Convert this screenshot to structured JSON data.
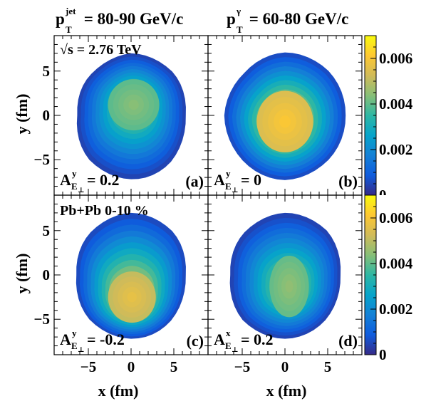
{
  "chart_data": {
    "type": "heatmap",
    "energy_label": "√s = 2.76 TeV",
    "collision_label": "Pb+Pb 0-10 %",
    "column_headers": [
      {
        "base": "p",
        "sup": "jet",
        "sub": "T",
        "range": " = 80-90 GeV/c"
      },
      {
        "base": "p",
        "sup": "γ",
        "sub": "T",
        "range": " = 60-80 GeV/c"
      }
    ],
    "xlabel": "x (fm)",
    "ylabel": "y (fm)",
    "xlim": [
      -9,
      9
    ],
    "ylim": [
      -9,
      9
    ],
    "xticks": [
      -5,
      0,
      5
    ],
    "yticks": [
      -5,
      0,
      5
    ],
    "xtick_labels": [
      "−5",
      "0",
      "5"
    ],
    "ytick_labels": [
      "−5",
      "0",
      "5"
    ],
    "colorbar": {
      "range": [
        0,
        0.007
      ],
      "ticks": [
        0,
        0.002,
        0.004,
        0.006
      ],
      "labels": [
        "0",
        "0.002",
        "0.004",
        "0.006"
      ],
      "colors": [
        "#352a87",
        "#0f5cdd",
        "#1481d6",
        "#06a4ca",
        "#2eb7a4",
        "#87bf77",
        "#d1bb59",
        "#fec832",
        "#f9fb0e"
      ]
    },
    "panels": [
      {
        "tag": "(a)",
        "asym": {
          "sup": "y",
          "value": "= 0.2"
        },
        "row": 0,
        "col": 0,
        "contour_rx": [
          6.4,
          6.8,
          6.2,
          6.6,
          6.3,
          6.9,
          6.5,
          6.6
        ],
        "contour_ry": [
          7.3,
          7.0,
          7.0,
          6.6,
          7.0,
          7.1,
          7.2,
          7.4
        ],
        "peak_level": 0.0045,
        "peak_x": 0.3,
        "peak_y": 1.2,
        "peak_sx": 3.0,
        "peak_sy": 3.0
      },
      {
        "tag": "(b)",
        "asym": {
          "sup": "y",
          "value": "= 0"
        },
        "row": 0,
        "col": 1,
        "contour_rx": [
          7.1,
          7.2,
          6.8,
          6.7,
          7.1,
          7.0,
          6.9,
          7.2
        ],
        "contour_ry": [
          7.0,
          7.1,
          7.1,
          6.8,
          7.0,
          7.2,
          7.3,
          7.1
        ],
        "peak_level": 0.0062,
        "peak_x": 0.0,
        "peak_y": -0.7,
        "peak_sx": 3.3,
        "peak_sy": 3.6
      },
      {
        "tag": "(c)",
        "asym": {
          "sup": "y",
          "value": "= -0.2"
        },
        "row": 1,
        "col": 0,
        "contour_rx": [
          6.4,
          6.8,
          6.3,
          6.7,
          6.4,
          6.9,
          6.6,
          6.6
        ],
        "contour_ry": [
          7.2,
          7.0,
          7.0,
          6.8,
          7.0,
          7.1,
          7.2,
          7.3
        ],
        "peak_level": 0.0058,
        "peak_x": 0.1,
        "peak_y": -2.5,
        "peak_sx": 2.8,
        "peak_sy": 3.0
      },
      {
        "tag": "(d)",
        "asym": {
          "sup": "x",
          "value": "= 0.2"
        },
        "row": 1,
        "col": 1,
        "contour_rx": [
          6.5,
          6.9,
          6.3,
          6.7,
          6.4,
          7.0,
          6.6,
          6.7
        ],
        "contour_ry": [
          7.1,
          7.1,
          7.0,
          6.8,
          7.0,
          7.2,
          7.2,
          7.2
        ],
        "peak_level": 0.0046,
        "peak_x": 0.5,
        "peak_y": -1.3,
        "peak_sx": 2.3,
        "peak_sy": 3.6
      }
    ]
  }
}
